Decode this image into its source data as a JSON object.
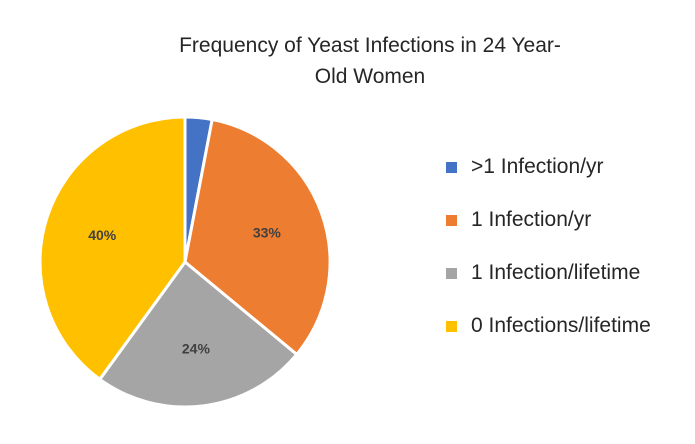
{
  "chart_data": {
    "type": "pie",
    "title": "Frequency of Yeast Infections in 24 Year-Old Women",
    "slices": [
      {
        "label": ">1 Infection/yr",
        "value": 3,
        "data_label": "",
        "color": "#4472C4"
      },
      {
        "label": "1 Infection/yr",
        "value": 33,
        "data_label": "33%",
        "color": "#ED7D31"
      },
      {
        "label": "1 Infection/lifetime",
        "value": 24,
        "data_label": "24%",
        "color": "#A5A5A5"
      },
      {
        "label": "0 Infections/lifetime",
        "value": 40,
        "data_label": "40%",
        "color": "#FFC000"
      }
    ],
    "legend_position": "right",
    "start_angle_deg": 0,
    "direction": "clockwise"
  },
  "title_lines": [
    "Frequency of Yeast Infections in 24 Year-",
    "Old Women"
  ]
}
